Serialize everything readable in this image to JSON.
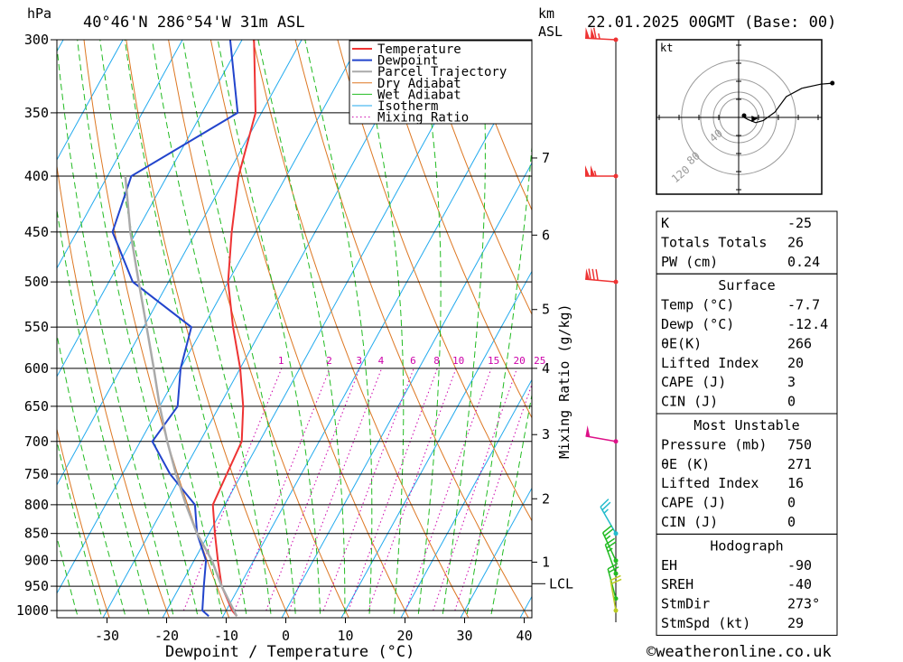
{
  "header": {
    "unit_hpa": "hPa",
    "location": "40°46'N 286°54'W 31m ASL",
    "unit_km": "km",
    "unit_asl": "ASL",
    "datetime": "22.01.2025 00GMT (Base: 00)"
  },
  "xlabel": "Dewpoint / Temperature (°C)",
  "ylabel_right": "Mixing Ratio (g/kg)",
  "credit": "©weatheronline.co.uk",
  "lcl_label": "LCL",
  "colors": {
    "temperature": "#ee3333",
    "dewpoint": "#2244cc",
    "parcel": "#aaaaaa",
    "dry_adiabat": "#dd7722",
    "wet_adiabat": "#22bb22",
    "isotherm": "#22aaee",
    "mixing_ratio": "#cc00aa"
  },
  "chart_data": {
    "type": "line",
    "subtype": "skew-T log-p",
    "pressure_levels": [
      300,
      350,
      400,
      450,
      500,
      550,
      600,
      650,
      700,
      750,
      800,
      850,
      900,
      950,
      1000
    ],
    "pressure_tick_labels": [
      "300",
      "350",
      "400",
      "450",
      "500",
      "550",
      "600",
      "650",
      "700",
      "750",
      "800",
      "850",
      "900",
      "950",
      "1000"
    ],
    "x_tick_labels": [
      "-30",
      "-20",
      "-10",
      "0",
      "10",
      "20",
      "30",
      "40"
    ],
    "x_ticks": [
      -30,
      -20,
      -10,
      0,
      10,
      20,
      30,
      40
    ],
    "height_labels": [
      {
        "label": "7",
        "p": 385
      },
      {
        "label": "6",
        "p": 453
      },
      {
        "label": "5",
        "p": 530
      },
      {
        "label": "4",
        "p": 600
      },
      {
        "label": "3",
        "p": 690
      },
      {
        "label": "2",
        "p": 790
      },
      {
        "label": "1",
        "p": 903
      }
    ],
    "lcl_pressure": 945,
    "mixing_ratio_labels": [
      "1",
      "2",
      "3",
      "4",
      "6",
      "8",
      "10",
      "15",
      "20",
      "25"
    ],
    "mixing_ratio_values": [
      1,
      2,
      3,
      4,
      6,
      8,
      10,
      15,
      20,
      25
    ],
    "legend": [
      "Temperature",
      "Dewpoint",
      "Parcel Trajectory",
      "Dry Adiabat",
      "Wet Adiabat",
      "Isotherm",
      "Mixing Ratio"
    ],
    "series": [
      {
        "name": "Temperature",
        "color": "#ee3333",
        "points": [
          [
            1012,
            -7.7
          ],
          [
            1000,
            -9
          ],
          [
            950,
            -13
          ],
          [
            900,
            -16
          ],
          [
            850,
            -19
          ],
          [
            800,
            -22
          ],
          [
            750,
            -22.5
          ],
          [
            700,
            -23
          ],
          [
            650,
            -26
          ],
          [
            600,
            -30
          ],
          [
            550,
            -35
          ],
          [
            500,
            -40
          ],
          [
            450,
            -44
          ],
          [
            400,
            -48
          ],
          [
            350,
            -51
          ],
          [
            300,
            -58
          ]
        ]
      },
      {
        "name": "Dewpoint",
        "color": "#2244cc",
        "points": [
          [
            1012,
            -12.4
          ],
          [
            1000,
            -14
          ],
          [
            950,
            -16
          ],
          [
            900,
            -18
          ],
          [
            850,
            -22
          ],
          [
            800,
            -25
          ],
          [
            750,
            -32
          ],
          [
            700,
            -38
          ],
          [
            650,
            -37
          ],
          [
            600,
            -40
          ],
          [
            550,
            -42
          ],
          [
            500,
            -56
          ],
          [
            450,
            -64
          ],
          [
            400,
            -66
          ],
          [
            350,
            -54
          ],
          [
            300,
            -62
          ]
        ]
      },
      {
        "name": "Parcel Trajectory",
        "color": "#aaaaaa",
        "points": [
          [
            1012,
            -7.7
          ],
          [
            950,
            -13
          ],
          [
            900,
            -17
          ],
          [
            850,
            -22
          ],
          [
            800,
            -26.5
          ],
          [
            750,
            -31
          ],
          [
            700,
            -35.5
          ],
          [
            650,
            -40
          ],
          [
            600,
            -44.5
          ],
          [
            550,
            -49.5
          ],
          [
            500,
            -55
          ],
          [
            450,
            -61
          ],
          [
            400,
            -67
          ]
        ]
      }
    ],
    "wind_barbs": [
      {
        "p": 300,
        "dir": 273,
        "speed_kt": 115,
        "color": "#ee3333"
      },
      {
        "p": 400,
        "dir": 270,
        "speed_kt": 105,
        "color": "#ee3333"
      },
      {
        "p": 500,
        "dir": 275,
        "speed_kt": 80,
        "color": "#ee3333"
      },
      {
        "p": 700,
        "dir": 280,
        "speed_kt": 50,
        "color": "#dd1188"
      },
      {
        "p": 850,
        "dir": 330,
        "speed_kt": 25,
        "color": "#22bbcc"
      },
      {
        "p": 900,
        "dir": 335,
        "speed_kt": 25,
        "color": "#22bb22"
      },
      {
        "p": 925,
        "dir": 340,
        "speed_kt": 25,
        "color": "#22bb22"
      },
      {
        "p": 975,
        "dir": 345,
        "speed_kt": 20,
        "color": "#22bb22"
      },
      {
        "p": 1000,
        "dir": 350,
        "speed_kt": 20,
        "color": "#bbcc22"
      }
    ],
    "hodograph": {
      "unit": "kt",
      "ring_labels": [
        "40",
        "80",
        "120"
      ],
      "ring_values": [
        40,
        80,
        120
      ],
      "trace_u_v": [
        [
          0,
          0
        ],
        [
          5,
          -2
        ],
        [
          15,
          -5
        ],
        [
          25,
          -3
        ],
        [
          40,
          5
        ],
        [
          55,
          20
        ],
        [
          75,
          28
        ],
        [
          100,
          32
        ],
        [
          115,
          33
        ]
      ],
      "storm_motion_u_v": [
        18,
        -1
      ]
    }
  },
  "indices": {
    "top": [
      {
        "label": "K",
        "value": "-25"
      },
      {
        "label": "Totals Totals",
        "value": "26"
      },
      {
        "label": "PW (cm)",
        "value": "0.24"
      }
    ],
    "surface": {
      "title": "Surface",
      "rows": [
        {
          "label": "Temp (°C)",
          "value": "-7.7"
        },
        {
          "label": "Dewp (°C)",
          "value": "-12.4"
        },
        {
          "label": "θE(K)",
          "value": "266"
        },
        {
          "label": "Lifted Index",
          "value": "20"
        },
        {
          "label": "CAPE (J)",
          "value": "3"
        },
        {
          "label": "CIN (J)",
          "value": "0"
        }
      ]
    },
    "most_unstable": {
      "title": "Most Unstable",
      "rows": [
        {
          "label": "Pressure (mb)",
          "value": "750"
        },
        {
          "label": "θE (K)",
          "value": "271"
        },
        {
          "label": "Lifted Index",
          "value": "16"
        },
        {
          "label": "CAPE (J)",
          "value": "0"
        },
        {
          "label": "CIN (J)",
          "value": "0"
        }
      ]
    },
    "hodograph": {
      "title": "Hodograph",
      "rows": [
        {
          "label": "EH",
          "value": "-90"
        },
        {
          "label": "SREH",
          "value": "-40"
        },
        {
          "label": "StmDir",
          "value": "273°"
        },
        {
          "label": "StmSpd (kt)",
          "value": "29"
        }
      ]
    }
  }
}
